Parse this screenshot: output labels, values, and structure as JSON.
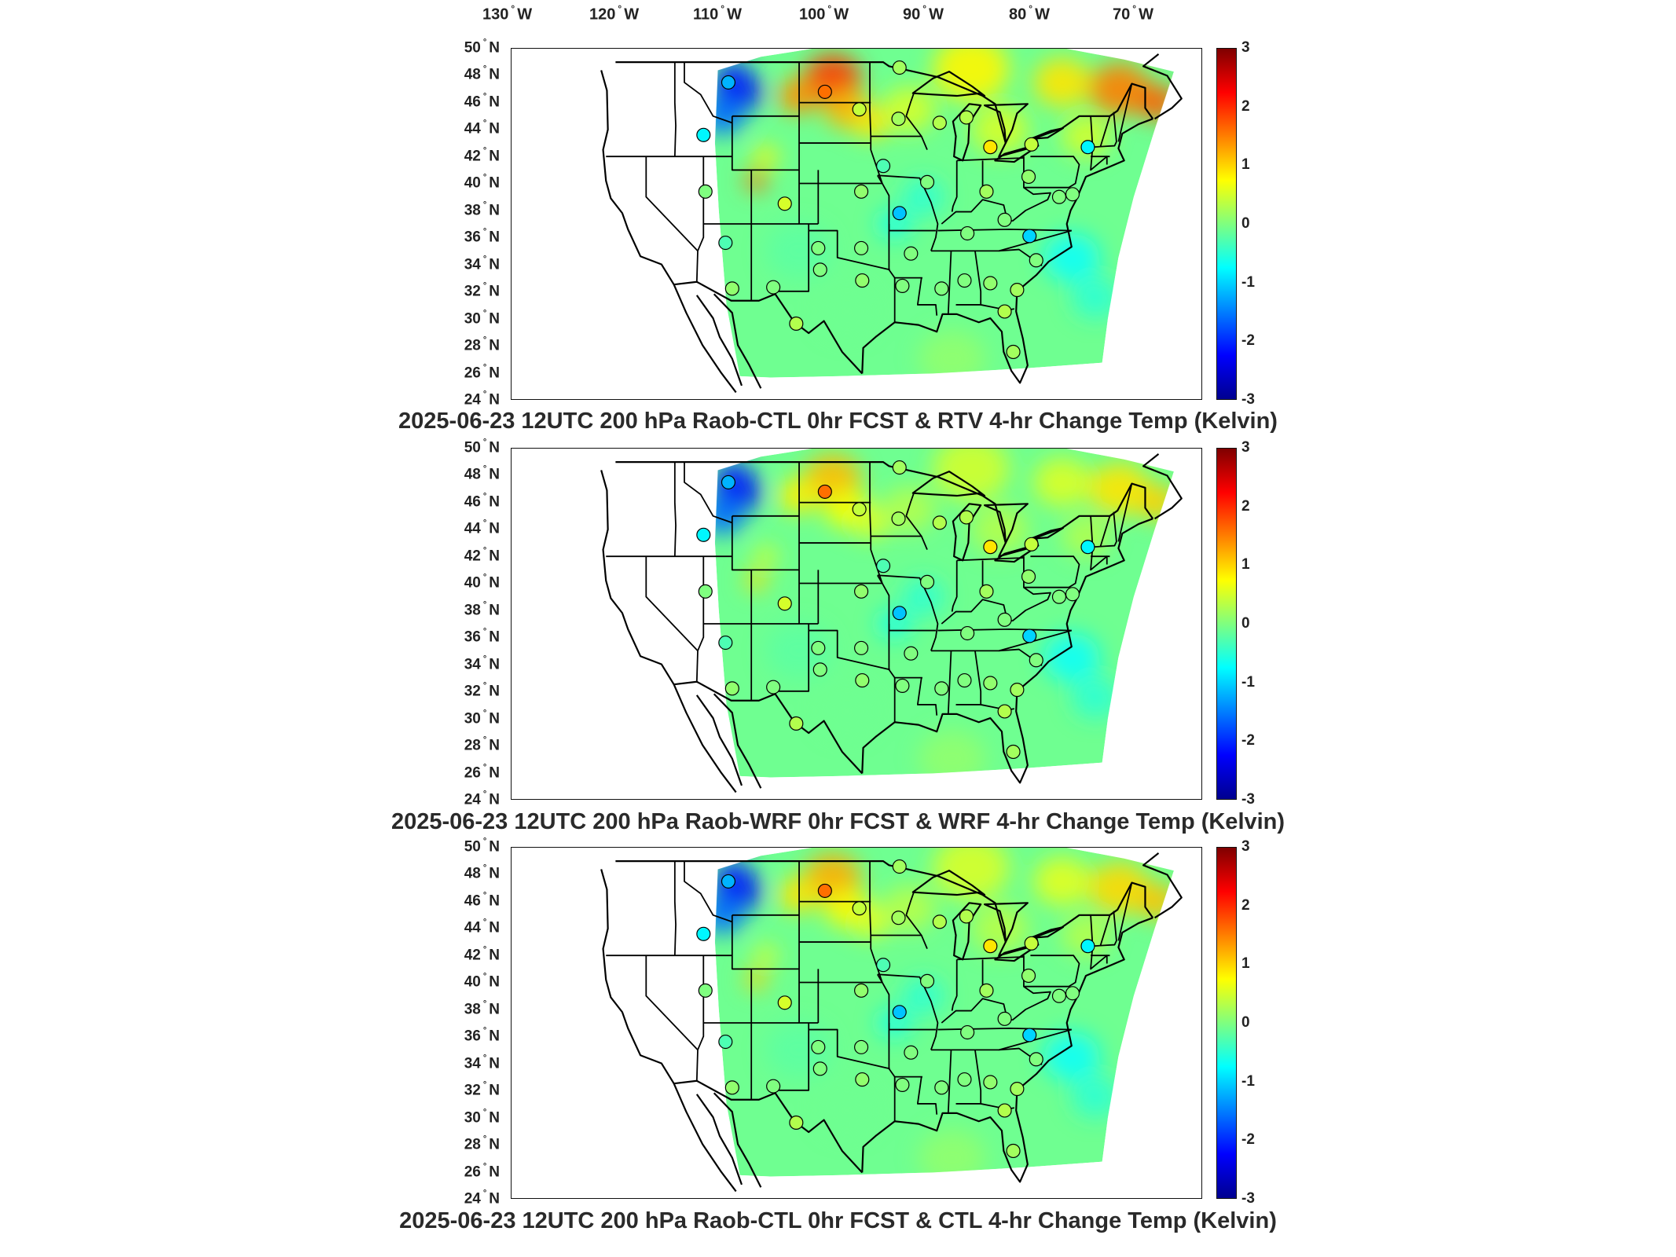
{
  "longitude_labels": [
    {
      "deg": "130",
      "hem": "W"
    },
    {
      "deg": "120",
      "hem": "W"
    },
    {
      "deg": "110",
      "hem": "W"
    },
    {
      "deg": "100",
      "hem": "W"
    },
    {
      "deg": "90",
      "hem": "W"
    },
    {
      "deg": "80",
      "hem": "W"
    },
    {
      "deg": "70",
      "hem": "W"
    }
  ],
  "latitude_labels": [
    {
      "deg": "50",
      "hem": "N"
    },
    {
      "deg": "48",
      "hem": "N"
    },
    {
      "deg": "46",
      "hem": "N"
    },
    {
      "deg": "44",
      "hem": "N"
    },
    {
      "deg": "42",
      "hem": "N"
    },
    {
      "deg": "40",
      "hem": "N"
    },
    {
      "deg": "38",
      "hem": "N"
    },
    {
      "deg": "36",
      "hem": "N"
    },
    {
      "deg": "34",
      "hem": "N"
    },
    {
      "deg": "32",
      "hem": "N"
    },
    {
      "deg": "30",
      "hem": "N"
    },
    {
      "deg": "28",
      "hem": "N"
    },
    {
      "deg": "26",
      "hem": "N"
    },
    {
      "deg": "24",
      "hem": "N"
    }
  ],
  "colorbar": {
    "ticks": [
      "3",
      "2",
      "1",
      "0",
      "-1",
      "-2",
      "-3"
    ],
    "range": [
      -3,
      3
    ],
    "colormap": "jet"
  },
  "panels": [
    {
      "caption": "2025-06-23 12UTC 200 hPa Raob-CTL 0hr FCST & RTV 4-hr Change Temp (Kelvin)",
      "warm_anomaly_strength": 1.0
    },
    {
      "caption": "2025-06-23 12UTC 200 hPa Raob-WRF 0hr FCST & WRF 4-hr Change Temp (Kelvin)",
      "warm_anomaly_strength": 0.6
    },
    {
      "caption": "2025-06-23 12UTC 200 hPa Raob-CTL 0hr FCST & CTL 4-hr Change Temp (Kelvin)",
      "warm_anomaly_strength": 0.65
    }
  ],
  "raob_stations": [
    {
      "lon": -111.4,
      "lat": 47.5,
      "value": -1.2
    },
    {
      "lon": -101.3,
      "lat": 46.8,
      "value": 1.6
    },
    {
      "lon": -97.7,
      "lat": 45.5,
      "value": 0.4
    },
    {
      "lon": -93.5,
      "lat": 48.6,
      "value": 0.2
    },
    {
      "lon": -93.6,
      "lat": 44.8,
      "value": 0.2
    },
    {
      "lon": -89.3,
      "lat": 44.5,
      "value": 0.3
    },
    {
      "lon": -86.5,
      "lat": 44.9,
      "value": 0.3
    },
    {
      "lon": -84.0,
      "lat": 42.7,
      "value": 0.9
    },
    {
      "lon": -79.7,
      "lat": 42.9,
      "value": 0.4
    },
    {
      "lon": -73.8,
      "lat": 42.7,
      "value": -0.8
    },
    {
      "lon": -114.0,
      "lat": 43.6,
      "value": -0.8
    },
    {
      "lon": -95.2,
      "lat": 41.3,
      "value": -0.3
    },
    {
      "lon": -90.6,
      "lat": 40.1,
      "value": 0.0
    },
    {
      "lon": -84.4,
      "lat": 39.4,
      "value": 0.2
    },
    {
      "lon": -80.0,
      "lat": 40.5,
      "value": 0.1
    },
    {
      "lon": -76.8,
      "lat": 39.0,
      "value": 0.0
    },
    {
      "lon": -75.4,
      "lat": 39.2,
      "value": 0.0
    },
    {
      "lon": -113.8,
      "lat": 39.4,
      "value": 0.0
    },
    {
      "lon": -105.5,
      "lat": 38.5,
      "value": 0.5
    },
    {
      "lon": -97.5,
      "lat": 39.4,
      "value": 0.1
    },
    {
      "lon": -93.5,
      "lat": 37.8,
      "value": -1.1
    },
    {
      "lon": -86.4,
      "lat": 36.3,
      "value": 0.0
    },
    {
      "lon": -79.9,
      "lat": 36.1,
      "value": -1.0
    },
    {
      "lon": -82.5,
      "lat": 37.3,
      "value": 0.0
    },
    {
      "lon": -111.7,
      "lat": 35.6,
      "value": -0.3
    },
    {
      "lon": -102.0,
      "lat": 35.2,
      "value": 0.0
    },
    {
      "lon": -97.5,
      "lat": 35.2,
      "value": 0.0
    },
    {
      "lon": -92.3,
      "lat": 34.8,
      "value": 0.0
    },
    {
      "lon": -79.2,
      "lat": 34.3,
      "value": 0.0
    },
    {
      "lon": -111.0,
      "lat": 32.2,
      "value": 0.1
    },
    {
      "lon": -106.7,
      "lat": 32.3,
      "value": 0.0
    },
    {
      "lon": -101.8,
      "lat": 33.6,
      "value": 0.0
    },
    {
      "lon": -97.4,
      "lat": 32.8,
      "value": 0.1
    },
    {
      "lon": -93.2,
      "lat": 32.4,
      "value": 0.0
    },
    {
      "lon": -89.1,
      "lat": 32.2,
      "value": 0.0
    },
    {
      "lon": -86.7,
      "lat": 32.8,
      "value": 0.0
    },
    {
      "lon": -84.0,
      "lat": 32.6,
      "value": 0.1
    },
    {
      "lon": -81.2,
      "lat": 32.1,
      "value": 0.2
    },
    {
      "lon": -104.3,
      "lat": 29.6,
      "value": 0.3
    },
    {
      "lon": -82.5,
      "lat": 30.5,
      "value": 0.3
    },
    {
      "lon": -81.6,
      "lat": 27.5,
      "value": 0.2
    }
  ]
}
